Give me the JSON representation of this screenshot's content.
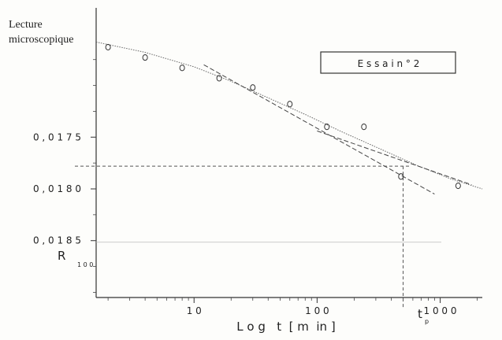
{
  "chart_data": {
    "type": "scatter",
    "title": "",
    "ylabel_lines": [
      "Lecture",
      "microscopique"
    ],
    "xlabel": "L o g   t  [ m  in ]",
    "legend_box": "E s s a i n ° 2",
    "x_scale": "log",
    "xlim": [
      1.6,
      2200
    ],
    "ylim_inverted": [
      0.01625,
      0.01905
    ],
    "x_tick_labels": [
      {
        "value": 10,
        "label": "1 0"
      },
      {
        "value": 100,
        "label": "1 0 0"
      },
      {
        "value": 1000,
        "label": "1 0 0 0"
      }
    ],
    "y_tick_labels": [
      {
        "value": 0.0175,
        "label": "0 , 0 1 7 5"
      },
      {
        "value": 0.018,
        "label": "0 , 0 1 8 0"
      },
      {
        "value": 0.0185,
        "label": "0 , 0 1 8 5"
      }
    ],
    "points": [
      {
        "x": 2,
        "y": 0.01663
      },
      {
        "x": 4,
        "y": 0.01673
      },
      {
        "x": 8,
        "y": 0.01683
      },
      {
        "x": 16,
        "y": 0.01693
      },
      {
        "x": 30,
        "y": 0.01702
      },
      {
        "x": 60,
        "y": 0.01718
      },
      {
        "x": 120,
        "y": 0.0174
      },
      {
        "x": 240,
        "y": 0.0174
      },
      {
        "x": 480,
        "y": 0.01788
      },
      {
        "x": 1400,
        "y": 0.01797
      }
    ],
    "fit_curve": [
      {
        "x": 1.6,
        "y": 0.01658
      },
      {
        "x": 4,
        "y": 0.01668
      },
      {
        "x": 10,
        "y": 0.01682
      },
      {
        "x": 20,
        "y": 0.01696
      },
      {
        "x": 40,
        "y": 0.01712
      },
      {
        "x": 80,
        "y": 0.01728
      },
      {
        "x": 160,
        "y": 0.01745
      },
      {
        "x": 320,
        "y": 0.01761
      },
      {
        "x": 640,
        "y": 0.01777
      },
      {
        "x": 1200,
        "y": 0.0179
      },
      {
        "x": 2200,
        "y": 0.018
      }
    ],
    "tangent_consolidation": [
      {
        "x": 12,
        "y": 0.0168
      },
      {
        "x": 900,
        "y": 0.01805
      }
    ],
    "tangent_secondary": [
      {
        "x": 100,
        "y": 0.01744
      },
      {
        "x": 1800,
        "y": 0.01796
      }
    ],
    "r100_label": "R",
    "r100_sub": "1 0 0",
    "r100_y": 0.01778,
    "tp_label": "t",
    "tp_sub": "p",
    "tp_x": 500
  }
}
